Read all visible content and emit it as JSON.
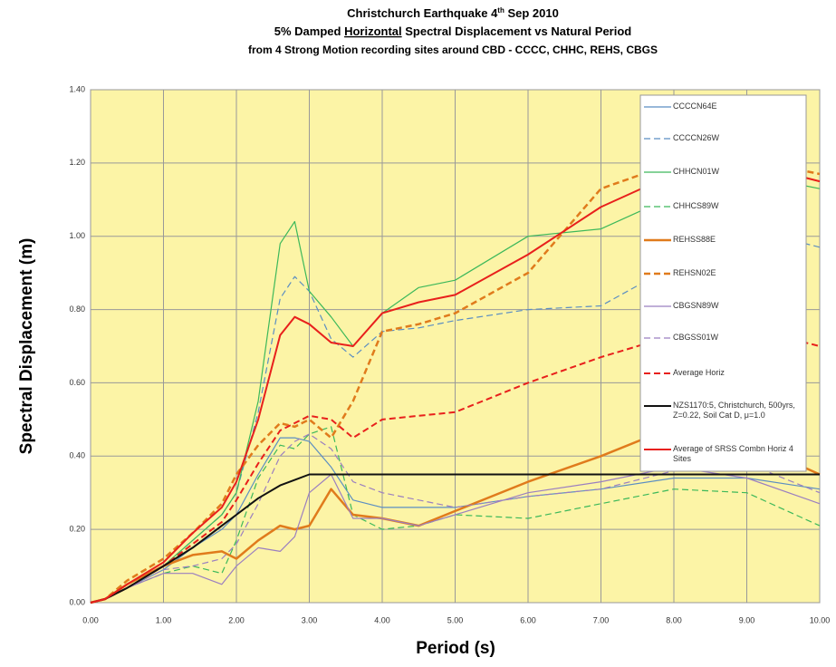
{
  "chart_data": {
    "type": "line",
    "title_parts": [
      "Christchurch Earthquake 4",
      "th",
      " Sep 2010"
    ],
    "subtitle_parts": [
      "5% Damped ",
      "Horizontal",
      " Spectral Displacement vs Natural Period"
    ],
    "subtitle2": "from 4 Strong Motion recording sites around CBD - CCCC, CHHC, REHS, CBGS",
    "xlabel": "Period (s)",
    "ylabel": "Spectral Displacement (m)",
    "xlim": [
      0,
      10
    ],
    "ylim": [
      0,
      1.4
    ],
    "xticks": [
      {
        "value": 0,
        "label": "0.00"
      },
      {
        "value": 1,
        "label": "1.00"
      },
      {
        "value": 2,
        "label": "2.00"
      },
      {
        "value": 3,
        "label": "3.00"
      },
      {
        "value": 4,
        "label": "4.00"
      },
      {
        "value": 5,
        "label": "5.00"
      },
      {
        "value": 6,
        "label": "6.00"
      },
      {
        "value": 7,
        "label": "7.00"
      },
      {
        "value": 8,
        "label": "8.00"
      },
      {
        "value": 9,
        "label": "9.00"
      },
      {
        "value": 10,
        "label": "10.00"
      }
    ],
    "yticks": [
      {
        "value": 0,
        "label": "0.00"
      },
      {
        "value": 0.2,
        "label": "0.20"
      },
      {
        "value": 0.4,
        "label": "0.40"
      },
      {
        "value": 0.6,
        "label": "0.60"
      },
      {
        "value": 0.8,
        "label": "0.80"
      },
      {
        "value": 1.0,
        "label": "1.00"
      },
      {
        "value": 1.2,
        "label": "1.20"
      },
      {
        "value": 1.4,
        "label": "1.40"
      }
    ],
    "grid": true,
    "background": "#fcf4a6",
    "legend": "upper right",
    "x": [
      0,
      0.2,
      0.5,
      1.0,
      1.4,
      1.8,
      2.0,
      2.3,
      2.6,
      2.8,
      3.0,
      3.3,
      3.6,
      4.0,
      4.5,
      5.0,
      6.0,
      7.0,
      8.0,
      9.0,
      10.0
    ],
    "series": [
      {
        "name": "CCCCN64E",
        "color": "#5b8ec2",
        "dashed": false,
        "width": 1.2,
        "values": [
          0,
          0.01,
          0.04,
          0.09,
          0.15,
          0.2,
          0.24,
          0.35,
          0.45,
          0.45,
          0.44,
          0.37,
          0.28,
          0.26,
          0.26,
          0.26,
          0.29,
          0.31,
          0.34,
          0.34,
          0.31
        ]
      },
      {
        "name": "CCCCN26W",
        "color": "#5b8ec2",
        "dashed": true,
        "width": 1.2,
        "values": [
          0,
          0.01,
          0.05,
          0.1,
          0.17,
          0.24,
          0.3,
          0.52,
          0.83,
          0.89,
          0.85,
          0.72,
          0.67,
          0.74,
          0.75,
          0.77,
          0.8,
          0.81,
          0.92,
          1.02,
          0.97
        ]
      },
      {
        "name": "CHHCN01W",
        "color": "#3cb85a",
        "dashed": false,
        "width": 1.2,
        "values": [
          0,
          0.01,
          0.05,
          0.1,
          0.17,
          0.24,
          0.3,
          0.55,
          0.98,
          1.04,
          0.85,
          0.78,
          0.7,
          0.79,
          0.86,
          0.88,
          1.0,
          1.02,
          1.11,
          1.17,
          1.13
        ]
      },
      {
        "name": "CHHCS89W",
        "color": "#3cb85a",
        "dashed": true,
        "width": 1.2,
        "values": [
          0,
          0.01,
          0.04,
          0.08,
          0.1,
          0.08,
          0.17,
          0.34,
          0.43,
          0.42,
          0.46,
          0.48,
          0.24,
          0.2,
          0.21,
          0.24,
          0.23,
          0.27,
          0.31,
          0.3,
          0.21
        ]
      },
      {
        "name": "REHSS88E",
        "color": "#e07b1c",
        "dashed": false,
        "width": 2.5,
        "values": [
          0,
          0.01,
          0.05,
          0.1,
          0.13,
          0.14,
          0.12,
          0.17,
          0.21,
          0.2,
          0.21,
          0.31,
          0.24,
          0.23,
          0.21,
          0.25,
          0.33,
          0.4,
          0.48,
          0.44,
          0.35
        ]
      },
      {
        "name": "REHSN02E",
        "color": "#e07b1c",
        "dashed": true,
        "width": 2.5,
        "values": [
          0,
          0.01,
          0.06,
          0.12,
          0.19,
          0.27,
          0.35,
          0.43,
          0.49,
          0.48,
          0.5,
          0.45,
          0.55,
          0.74,
          0.76,
          0.79,
          0.9,
          1.13,
          1.2,
          1.21,
          1.17
        ]
      },
      {
        "name": "CBGSN89W",
        "color": "#9b7fc0",
        "dashed": false,
        "width": 1.2,
        "values": [
          0,
          0.01,
          0.04,
          0.08,
          0.08,
          0.05,
          0.1,
          0.15,
          0.14,
          0.18,
          0.3,
          0.35,
          0.23,
          0.23,
          0.21,
          0.24,
          0.3,
          0.33,
          0.37,
          0.34,
          0.27
        ]
      },
      {
        "name": "CBGSS01W",
        "color": "#9b7fc0",
        "dashed": true,
        "width": 1.2,
        "values": [
          0,
          0.01,
          0.04,
          0.09,
          0.1,
          0.12,
          0.16,
          0.27,
          0.4,
          0.44,
          0.46,
          0.42,
          0.33,
          0.3,
          0.28,
          0.26,
          0.29,
          0.31,
          0.36,
          0.38,
          0.3
        ]
      },
      {
        "name": "Average Horiz",
        "color": "#e8201c",
        "dashed": true,
        "width": 2,
        "values": [
          0,
          0.01,
          0.04,
          0.1,
          0.16,
          0.22,
          0.28,
          0.38,
          0.47,
          0.49,
          0.51,
          0.5,
          0.45,
          0.5,
          0.51,
          0.52,
          0.6,
          0.67,
          0.73,
          0.75,
          0.7
        ]
      },
      {
        "name": "NZS1170:5, Christchurch, 500yrs, Z=0.22, Soil Cat D, μ=1.0",
        "color": "#111111",
        "dashed": false,
        "width": 2,
        "values": [
          0,
          0.01,
          0.04,
          0.1,
          0.15,
          0.21,
          0.24,
          0.285,
          0.32,
          0.335,
          0.35,
          0.35,
          0.35,
          0.35,
          0.35,
          0.35,
          0.35,
          0.35,
          0.35,
          0.35,
          0.35
        ]
      },
      {
        "name": "Average of SRSS Combn Horiz 4 Sites",
        "color": "#e8201c",
        "dashed": false,
        "width": 2,
        "values": [
          0,
          0.01,
          0.05,
          0.11,
          0.19,
          0.26,
          0.33,
          0.5,
          0.73,
          0.78,
          0.76,
          0.71,
          0.7,
          0.79,
          0.82,
          0.84,
          0.95,
          1.08,
          1.17,
          1.2,
          1.15
        ]
      }
    ]
  }
}
